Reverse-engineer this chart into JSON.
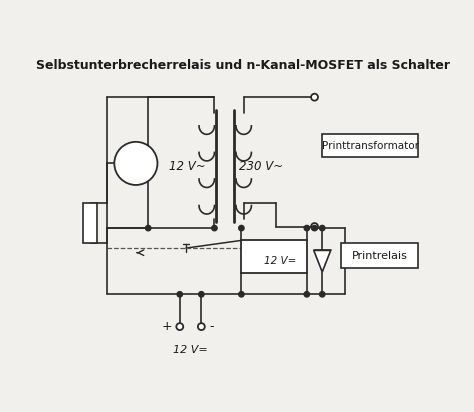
{
  "title": "Selbstunterbrecherrelais und n-Kanal-MOSFET als Schalter",
  "bg_color": "#f2f0ec",
  "line_color": "#2a2a2a",
  "text_color": "#1a1a1a",
  "label_12V_ac": "12 V~",
  "label_230V_ac": "230 V~",
  "label_12V_dc_relay": "12 V=",
  "label_12V_dc_bottom": "12 V=",
  "label_printtransformator": "Printtransformator",
  "label_printrelais": "Printrelais",
  "label_plus": "+",
  "label_minus": "-"
}
